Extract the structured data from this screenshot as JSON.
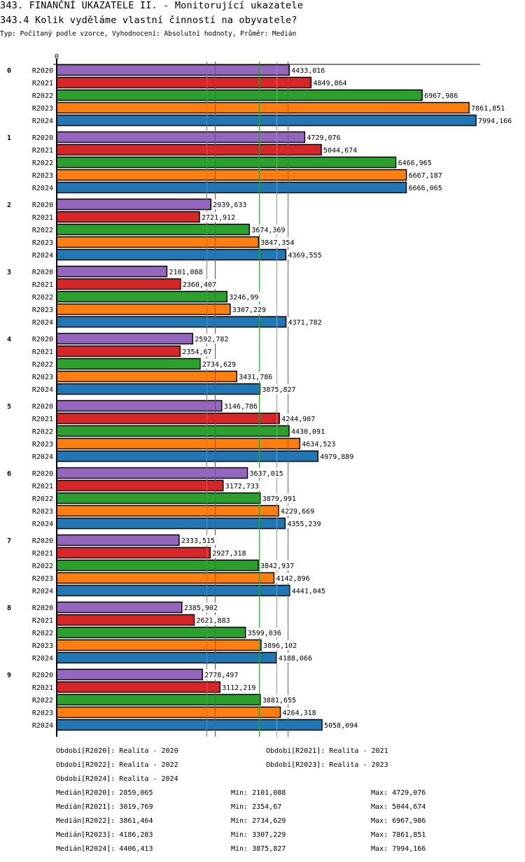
{
  "header": {
    "title": "343. FINANČNÍ UKAZATELE II. - Monitorující ukazatele",
    "subtitle": "343.4 Kolik vyděláme vlastní činností na obyvatele?",
    "meta": "Typ: Počítaný podle vzorce, Vyhodnocení: Absolutní hodnoty, Průměr: Medián"
  },
  "chart_data": {
    "type": "bar",
    "orientation": "horizontal",
    "title": "343.4 Kolik vyděláme vlastní činností na obyvatele?",
    "xlabel": "",
    "ylabel": "",
    "axis_zero_label": "0",
    "xlim": [
      0,
      8000
    ],
    "grid": false,
    "categories": [
      "0",
      "1",
      "2",
      "3",
      "4",
      "5",
      "6",
      "7",
      "8",
      "9"
    ],
    "series": [
      {
        "name": "R2020",
        "color": "#9467bd",
        "values": [
          4433.016,
          4729.076,
          2939.633,
          2101.088,
          2592.782,
          3146.786,
          3637.015,
          2333.515,
          2385.902,
          2778.497
        ],
        "labels": [
          "4433,016",
          "4729,076",
          "2939,633",
          "2101,088",
          "2592,782",
          "3146,786",
          "3637,015",
          "2333,515",
          "2385,902",
          "2778,497"
        ]
      },
      {
        "name": "R2021",
        "color": "#d62728",
        "values": [
          4849.864,
          5044.674,
          2721.912,
          2360.407,
          2354.67,
          4244.907,
          3172.733,
          2927.318,
          2621.883,
          3112.219
        ],
        "labels": [
          "4849,864",
          "5044,674",
          "2721,912",
          "2360,407",
          "2354,67",
          "4244,907",
          "3172,733",
          "2927,318",
          "2621,883",
          "3112,219"
        ]
      },
      {
        "name": "R2022",
        "color": "#2ca02c",
        "values": [
          6967.986,
          6466.965,
          3674.369,
          3246.99,
          2734.629,
          4430.091,
          3879.991,
          3842.937,
          3599.036,
          3881.655
        ],
        "labels": [
          "6967,986",
          "6466,965",
          "3674,369",
          "3246,99",
          "2734,629",
          "4430,091",
          "3879,991",
          "3842,937",
          "3599,036",
          "3881,655"
        ]
      },
      {
        "name": "R2023",
        "color": "#ff7f0e",
        "values": [
          7861.851,
          6667.187,
          3847.354,
          3307.229,
          3431.786,
          4634.523,
          4229.669,
          4142.896,
          3896.102,
          4264.318
        ],
        "labels": [
          "7861,851",
          "6667,187",
          "3847,354",
          "3307,229",
          "3431,786",
          "4634,523",
          "4229,669",
          "4142,896",
          "3896,102",
          "4264,318"
        ]
      },
      {
        "name": "R2024",
        "color": "#1f77b4",
        "values": [
          7994.166,
          6666.065,
          4369.555,
          4371.782,
          3875.827,
          4979.889,
          4355.239,
          4441.045,
          4188.066,
          5058.094
        ],
        "labels": [
          "7994,166",
          "6666,065",
          "4369,555",
          "4371,782",
          "3875,827",
          "4979,889",
          "4355,239",
          "4441,045",
          "4188,066",
          "5058,094"
        ]
      }
    ],
    "medians": [
      {
        "series": "R2020",
        "value": 2859.065
      },
      {
        "series": "R2021",
        "value": 3019.769
      },
      {
        "series": "R2022",
        "value": 3861.464
      },
      {
        "series": "R2023",
        "value": 4186.283
      },
      {
        "series": "R2024",
        "value": 4406.413
      }
    ]
  },
  "legend": {
    "periods": [
      "Období[R2020]: Realita - 2020",
      "Období[R2021]: Realita - 2021",
      "Období[R2022]: Realita - 2022",
      "Období[R2023]: Realita - 2023",
      "Období[R2024]: Realita - 2024"
    ],
    "stats": [
      {
        "median": "Medián[R2020]: 2859,065",
        "min": "Min: 2101,088",
        "max": "Max: 4729,076"
      },
      {
        "median": "Medián[R2021]: 3019,769",
        "min": "Min: 2354,67",
        "max": "Max: 5044,674"
      },
      {
        "median": "Medián[R2022]: 3861,464",
        "min": "Min: 2734,629",
        "max": "Max: 6967,986"
      },
      {
        "median": "Medián[R2023]: 4186,283",
        "min": "Min: 3307,229",
        "max": "Max: 7861,851"
      },
      {
        "median": "Medián[R2024]: 4406,413",
        "min": "Min: 3875,827",
        "max": "Max: 7994,166"
      }
    ]
  }
}
